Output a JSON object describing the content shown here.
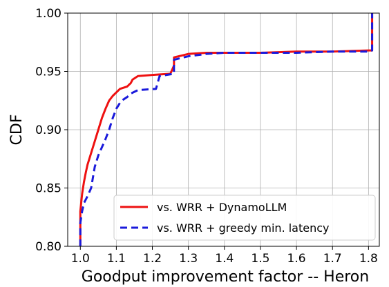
{
  "chart_data": {
    "type": "line",
    "title": "",
    "xlabel": "Goodput improvement factor -- Heron",
    "ylabel": "CDF",
    "xlim": [
      0.965,
      1.83
    ],
    "ylim": [
      0.8,
      1.0
    ],
    "xticks": [
      1.0,
      1.1,
      1.2,
      1.3,
      1.4,
      1.5,
      1.6,
      1.7,
      1.8
    ],
    "xtick_labels": [
      "1.0",
      "1.1",
      "1.2",
      "1.3",
      "1.4",
      "1.5",
      "1.6",
      "1.7",
      "1.8"
    ],
    "yticks": [
      0.8,
      0.85,
      0.9,
      0.95,
      1.0
    ],
    "ytick_labels": [
      "0.80",
      "0.85",
      "0.90",
      "0.95",
      "1.00"
    ],
    "grid": true,
    "legend_position": "bottom-right",
    "series": [
      {
        "name": "vs. WRR + DynamoLLM",
        "color": "#ee1111",
        "style": "solid",
        "x": [
          1.0,
          1.0,
          1.005,
          1.01,
          1.015,
          1.02,
          1.03,
          1.04,
          1.05,
          1.06,
          1.07,
          1.08,
          1.09,
          1.1,
          1.11,
          1.13,
          1.14,
          1.145,
          1.16,
          1.2,
          1.25,
          1.26,
          1.26,
          1.3,
          1.35,
          1.4,
          1.5,
          1.6,
          1.7,
          1.8,
          1.81,
          1.81
        ],
        "y": [
          0.8,
          0.83,
          0.845,
          0.855,
          0.863,
          0.87,
          0.88,
          0.89,
          0.9,
          0.91,
          0.918,
          0.925,
          0.929,
          0.932,
          0.935,
          0.937,
          0.94,
          0.943,
          0.946,
          0.947,
          0.948,
          0.955,
          0.962,
          0.965,
          0.966,
          0.966,
          0.966,
          0.967,
          0.967,
          0.968,
          0.968,
          1.0
        ]
      },
      {
        "name": "vs. WRR + greedy min. latency",
        "color": "#1a1adb",
        "style": "dashed",
        "x": [
          1.0,
          1.0,
          1.005,
          1.01,
          1.02,
          1.03,
          1.04,
          1.05,
          1.06,
          1.07,
          1.08,
          1.09,
          1.1,
          1.11,
          1.12,
          1.13,
          1.14,
          1.16,
          1.21,
          1.22,
          1.26,
          1.26,
          1.3,
          1.35,
          1.4,
          1.5,
          1.6,
          1.7,
          1.8,
          1.81,
          1.81
        ],
        "y": [
          0.8,
          0.82,
          0.83,
          0.837,
          0.843,
          0.85,
          0.868,
          0.878,
          0.885,
          0.892,
          0.9,
          0.91,
          0.918,
          0.923,
          0.926,
          0.928,
          0.931,
          0.934,
          0.935,
          0.946,
          0.948,
          0.96,
          0.963,
          0.965,
          0.966,
          0.966,
          0.966,
          0.967,
          0.967,
          0.968,
          1.0
        ]
      }
    ]
  }
}
